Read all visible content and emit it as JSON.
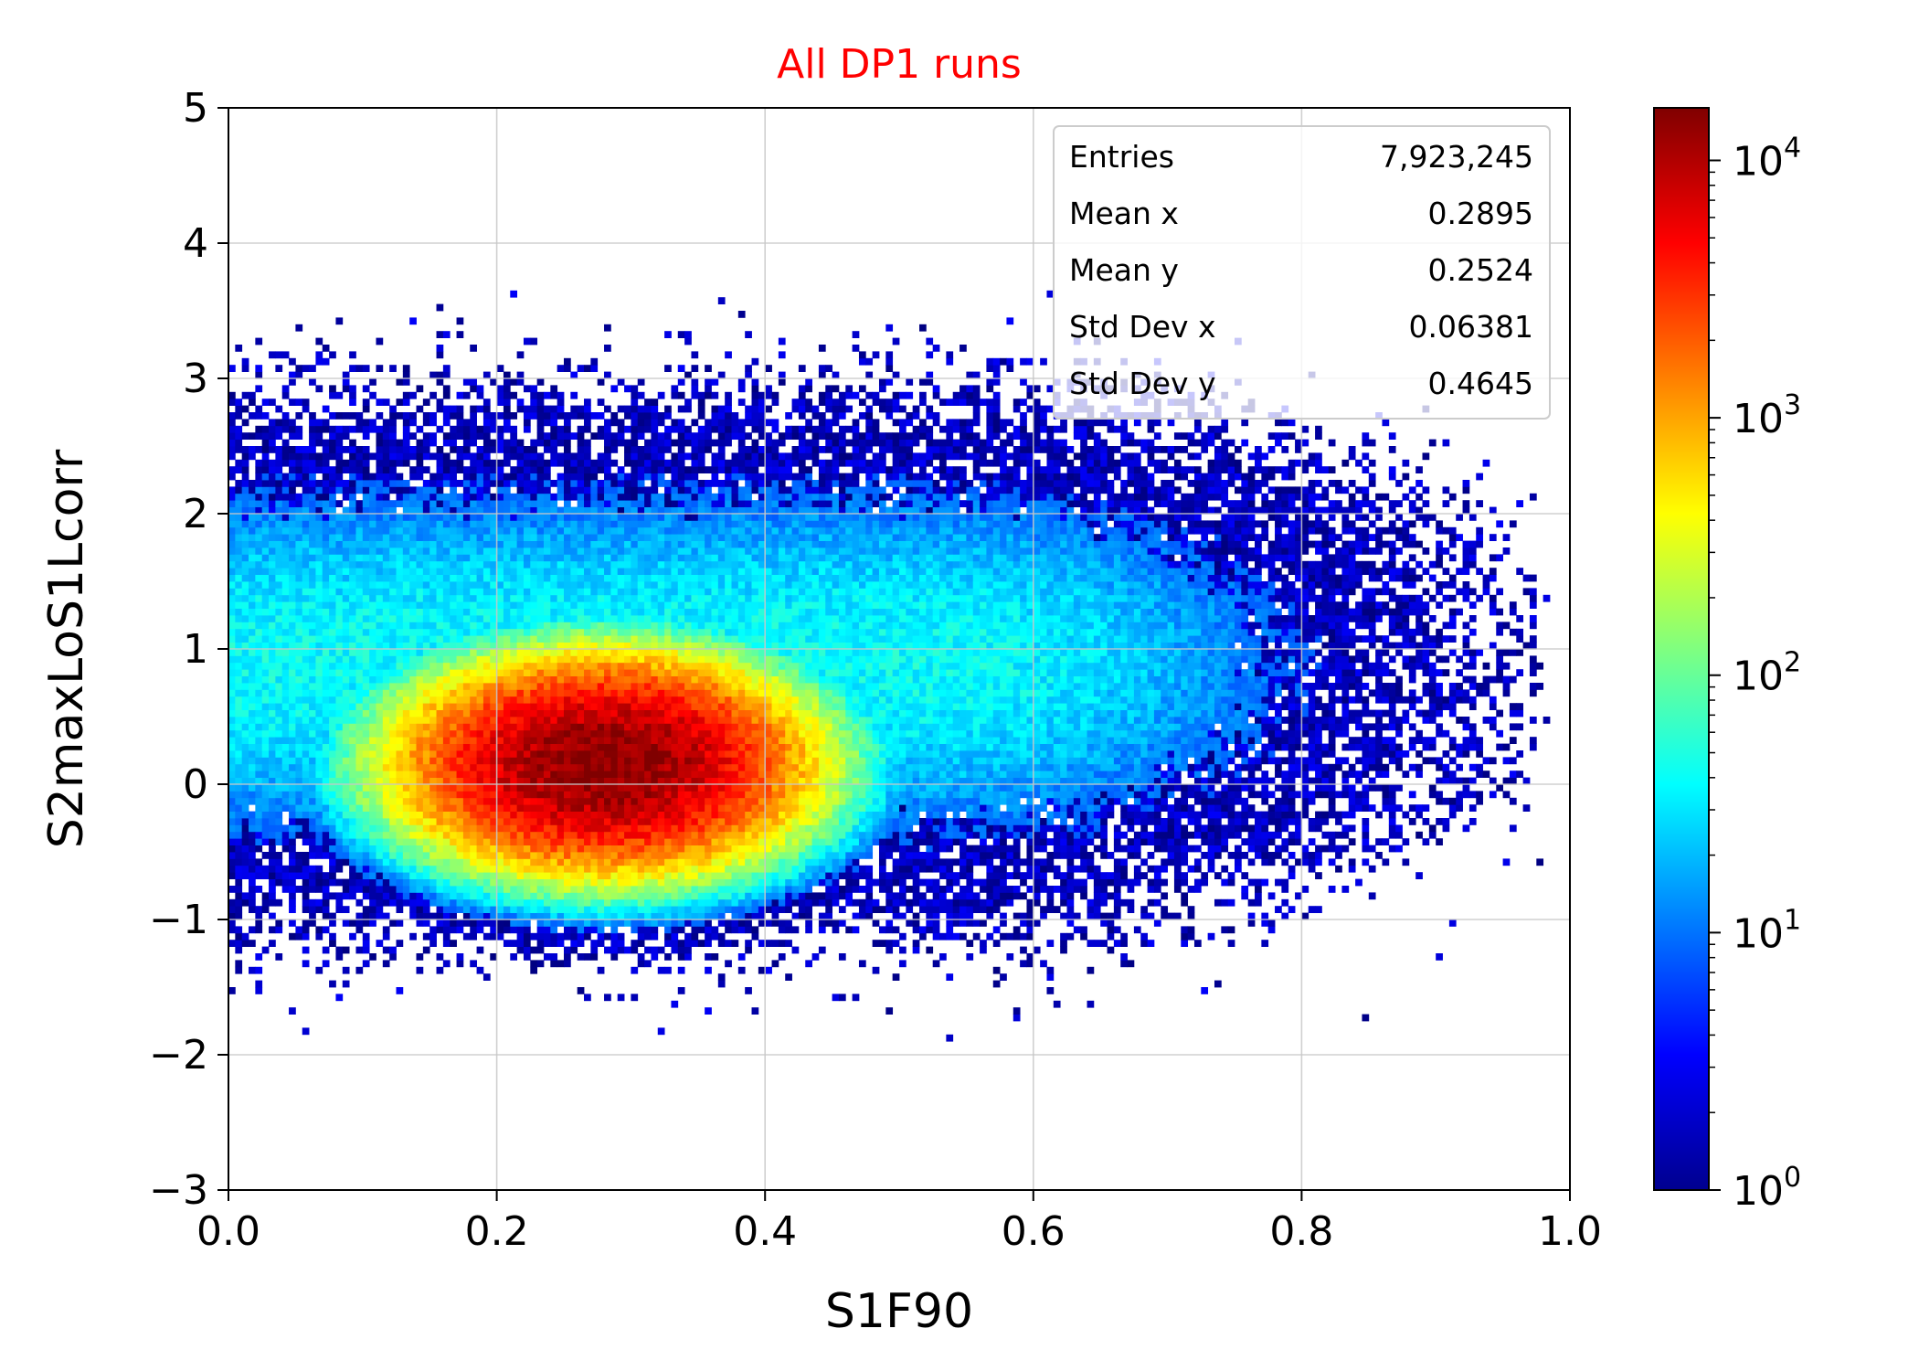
{
  "chart_data": {
    "type": "heatmap",
    "title": "All DP1 runs",
    "title_color": "#ff0000",
    "xlabel": "S1F90",
    "ylabel": "S2maxLoS1Lcorr",
    "xlim": [
      0.0,
      1.0
    ],
    "ylim": [
      -3,
      5
    ],
    "x_ticks": [
      "0.0",
      "0.2",
      "0.4",
      "0.6",
      "0.8",
      "1.0"
    ],
    "y_ticks": [
      "5",
      "4",
      "3",
      "2",
      "1",
      "0",
      "−1",
      "−2",
      "−3"
    ],
    "grid": true,
    "colormap": "jet",
    "color_scale": "log",
    "colorbar_range": [
      1,
      16000
    ],
    "colorbar_ticks": [
      {
        "base": "10",
        "exp": "0"
      },
      {
        "base": "10",
        "exp": "1"
      },
      {
        "base": "10",
        "exp": "2"
      },
      {
        "base": "10",
        "exp": "3"
      },
      {
        "base": "10",
        "exp": "4"
      }
    ],
    "peak": {
      "x": 0.28,
      "y": 0.15
    },
    "stats_box": {
      "placement": "top-right",
      "rows": [
        {
          "label": "Entries",
          "value": "7,923,245"
        },
        {
          "label": "Mean x",
          "value": "0.2895"
        },
        {
          "label": "Mean y",
          "value": "0.2524"
        },
        {
          "label": "Std Dev x",
          "value": "0.06381"
        },
        {
          "label": "Std Dev y",
          "value": "0.4645"
        }
      ]
    }
  }
}
